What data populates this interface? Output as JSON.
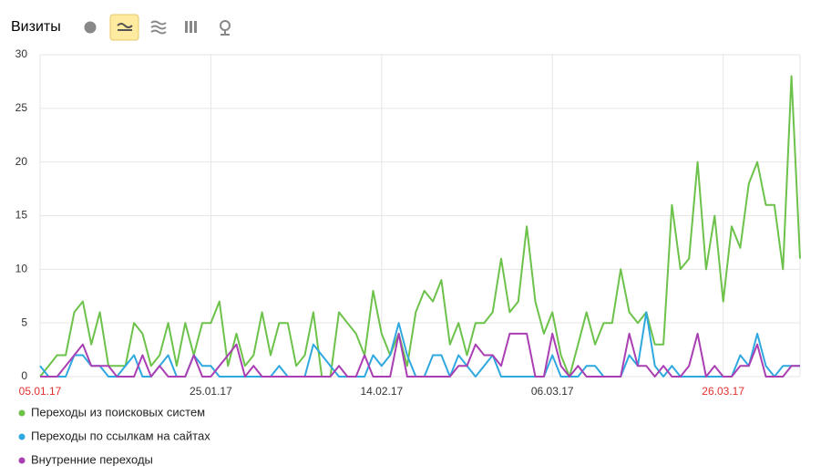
{
  "header": {
    "title": "Визиты"
  },
  "chart_data": {
    "type": "line",
    "categories": [
      "05.01.17",
      null,
      null,
      null,
      null,
      null,
      null,
      null,
      null,
      null,
      null,
      null,
      null,
      null,
      null,
      null,
      null,
      null,
      null,
      null,
      "25.01.17",
      null,
      null,
      null,
      null,
      null,
      null,
      null,
      null,
      null,
      null,
      null,
      null,
      null,
      null,
      null,
      null,
      null,
      null,
      null,
      "14.02.17",
      null,
      null,
      null,
      null,
      null,
      null,
      null,
      null,
      null,
      null,
      null,
      null,
      null,
      null,
      null,
      null,
      null,
      null,
      null,
      "06.03.17",
      null,
      null,
      null,
      null,
      null,
      null,
      null,
      null,
      null,
      null,
      null,
      null,
      null,
      null,
      null,
      null,
      null,
      null,
      null,
      "26.03.17",
      null,
      null,
      null,
      null,
      null,
      null,
      null,
      null,
      null
    ],
    "highlighted_categories": [
      0,
      80
    ],
    "highlight_color": "#e0302e",
    "series": [
      {
        "name": "Переходы из поисковых систем",
        "color": "#6cc24a",
        "values": [
          0,
          1,
          2,
          2,
          6,
          7,
          3,
          6,
          1,
          1,
          1,
          5,
          4,
          1,
          2,
          5,
          1,
          5,
          2,
          5,
          5,
          7,
          1,
          4,
          1,
          2,
          6,
          2,
          5,
          5,
          1,
          2,
          6,
          0,
          0,
          6,
          5,
          4,
          2,
          8,
          4,
          2,
          4,
          1,
          6,
          8,
          7,
          9,
          3,
          5,
          2,
          5,
          5,
          6,
          11,
          6,
          7,
          14,
          7,
          4,
          6,
          2,
          0,
          3,
          6,
          3,
          5,
          5,
          10,
          6,
          5,
          6,
          3,
          3,
          16,
          10,
          11,
          20,
          10,
          15,
          7,
          14,
          12,
          18,
          20,
          16,
          16,
          10,
          28,
          11
        ]
      },
      {
        "name": "Переходы по ссылкам на сайтах",
        "color": "#2fa8e0",
        "values": [
          1,
          0,
          0,
          0,
          2,
          2,
          1,
          1,
          0,
          0,
          1,
          2,
          0,
          0,
          1,
          2,
          0,
          0,
          2,
          1,
          1,
          0,
          0,
          0,
          0,
          0,
          0,
          0,
          1,
          0,
          0,
          0,
          3,
          2,
          1,
          0,
          0,
          0,
          0,
          2,
          1,
          2,
          5,
          2,
          0,
          0,
          2,
          2,
          0,
          2,
          1,
          0,
          1,
          2,
          0,
          0,
          0,
          0,
          0,
          0,
          2,
          0,
          0,
          0,
          1,
          1,
          0,
          0,
          0,
          2,
          1,
          6,
          1,
          0,
          1,
          0,
          0,
          0,
          0,
          0,
          0,
          0,
          2,
          1,
          4,
          1,
          0,
          1,
          1,
          1
        ]
      },
      {
        "name": "Внутренние переходы",
        "color": "#a93fb2",
        "values": [
          0,
          0,
          0,
          1,
          2,
          3,
          1,
          1,
          1,
          0,
          0,
          0,
          2,
          0,
          1,
          0,
          0,
          0,
          2,
          0,
          0,
          1,
          2,
          3,
          0,
          1,
          0,
          0,
          0,
          0,
          0,
          0,
          0,
          0,
          0,
          1,
          0,
          0,
          2,
          0,
          0,
          0,
          4,
          0,
          0,
          0,
          0,
          0,
          0,
          1,
          1,
          3,
          2,
          2,
          1,
          4,
          4,
          4,
          0,
          0,
          4,
          1,
          0,
          1,
          0,
          0,
          0,
          0,
          0,
          4,
          1,
          1,
          0,
          1,
          0,
          0,
          1,
          4,
          0,
          1,
          0,
          0,
          1,
          1,
          3,
          0,
          0,
          0,
          1,
          1
        ]
      }
    ],
    "ylim": [
      0,
      30
    ],
    "yticks": [
      0,
      5,
      10,
      15,
      20,
      25,
      30
    ],
    "grid": true
  }
}
